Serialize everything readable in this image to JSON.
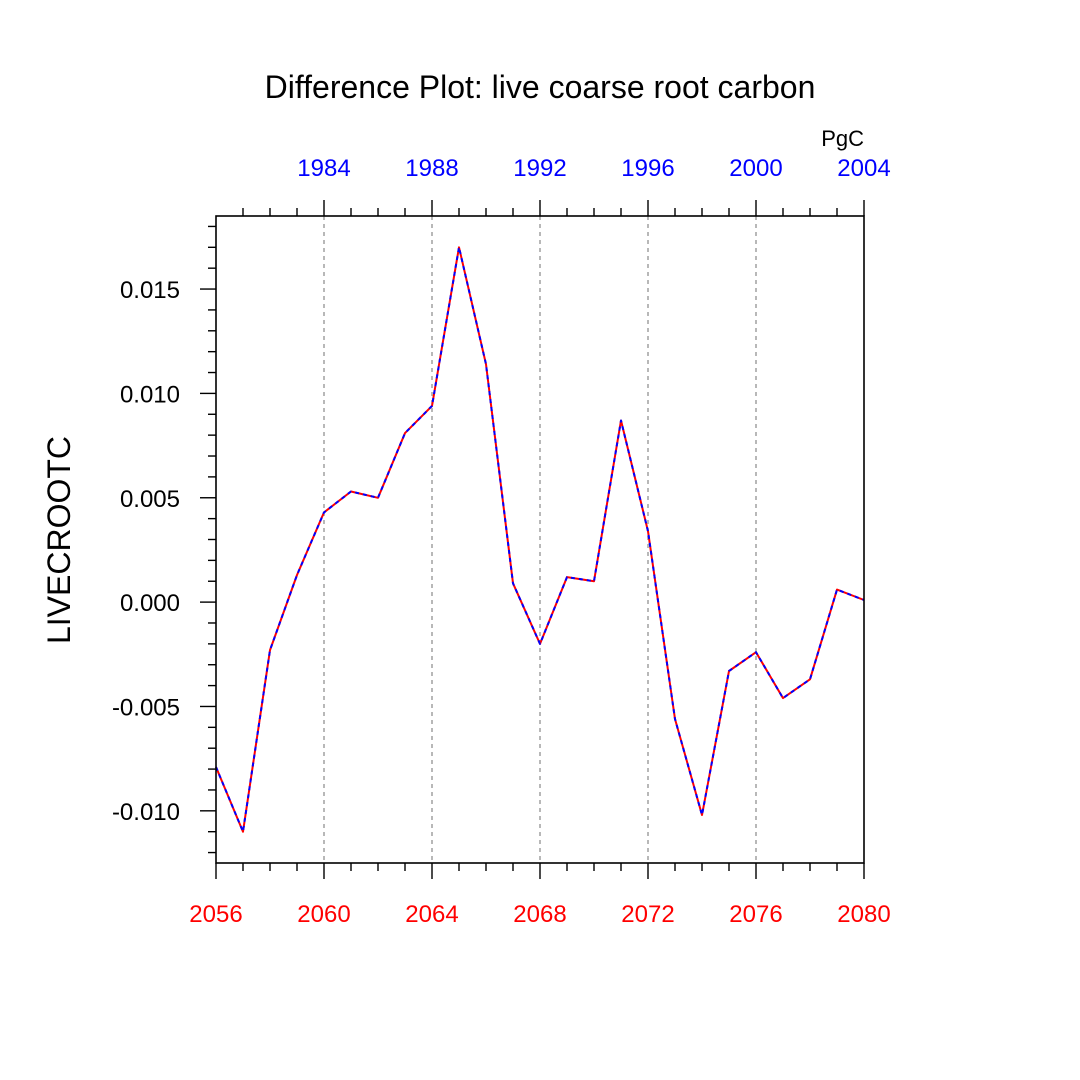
{
  "chart_data": {
    "type": "line",
    "title": "Difference Plot: live coarse root carbon",
    "ylabel": "LIVECROOTC",
    "units": "PgC",
    "ylim": [
      -0.0125,
      0.0185
    ],
    "xlim": [
      2056,
      2080
    ],
    "grid": "vertical dashed at major ticks",
    "x_bottom_ticks": [
      "2056",
      "2060",
      "2064",
      "2068",
      "2072",
      "2076",
      "2080"
    ],
    "x_top_ticks": [
      "1984",
      "1988",
      "1992",
      "1996",
      "2000",
      "2004"
    ],
    "x_top_years": [
      1984,
      1988,
      1992,
      1996,
      2000,
      2004
    ],
    "x_top_offset": 76,
    "y_ticks": [
      "-0.010",
      "-0.005",
      "0.000",
      "0.005",
      "0.010",
      "0.015"
    ],
    "y_tick_values": [
      -0.01,
      -0.005,
      0.0,
      0.005,
      0.01,
      0.015
    ],
    "colors": {
      "bottom_axis": "#ff0000",
      "top_axis": "#0000ff",
      "series_a": "#ff0000",
      "series_b": "#0000ff",
      "grid": "#9a9a9a"
    },
    "x": [
      2056,
      2057,
      2058,
      2059,
      2060,
      2061,
      2062,
      2063,
      2064,
      2065,
      2066,
      2067,
      2068,
      2069,
      2070,
      2071,
      2072,
      2073,
      2074,
      2075,
      2076,
      2077,
      2078,
      2079,
      2080
    ],
    "series": [
      {
        "name": "difference",
        "values": [
          -0.0079,
          -0.011,
          -0.0023,
          0.0013,
          0.0043,
          0.0053,
          0.005,
          0.0081,
          0.0094,
          0.017,
          0.0114,
          0.0009,
          -0.002,
          0.0012,
          0.001,
          0.0087,
          0.0034,
          -0.0056,
          -0.0102,
          -0.0033,
          -0.0024,
          -0.0046,
          -0.0037,
          0.0006,
          0.0001
        ]
      }
    ]
  }
}
